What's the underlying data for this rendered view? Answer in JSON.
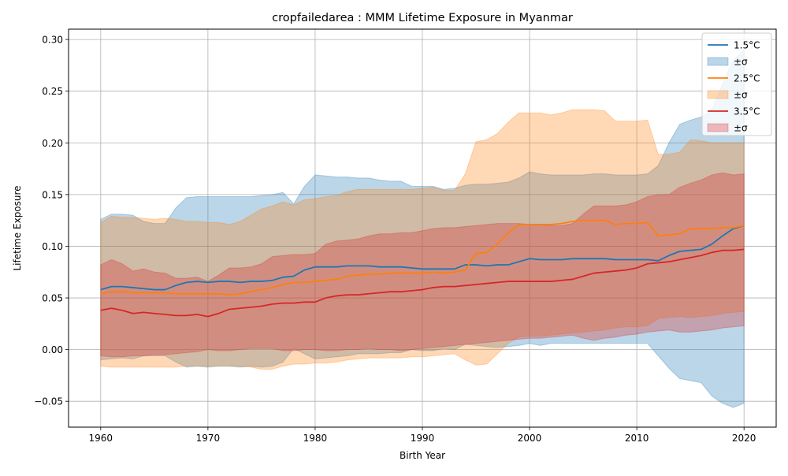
{
  "chart_data": {
    "type": "line",
    "title": "cropfailedarea : MMM Lifetime Exposure in Myanmar",
    "xlabel": "Birth Year",
    "ylabel": "Lifetime Exposure",
    "xlim": [
      1957,
      2023
    ],
    "ylim": [
      -0.075,
      0.31
    ],
    "xticks": [
      1960,
      1970,
      1980,
      1990,
      2000,
      2010,
      2020
    ],
    "yticks": [
      -0.05,
      0.0,
      0.05,
      0.1,
      0.15,
      0.2,
      0.25,
      0.3
    ],
    "ytick_labels": [
      "−0.05",
      "0.00",
      "0.05",
      "0.10",
      "0.15",
      "0.20",
      "0.25",
      "0.30"
    ],
    "grid": true,
    "legend_position": "top-right",
    "x": [
      1960,
      1961,
      1962,
      1963,
      1964,
      1965,
      1966,
      1967,
      1968,
      1969,
      1970,
      1971,
      1972,
      1973,
      1974,
      1975,
      1976,
      1977,
      1978,
      1979,
      1980,
      1981,
      1982,
      1983,
      1984,
      1985,
      1986,
      1987,
      1988,
      1989,
      1990,
      1991,
      1992,
      1993,
      1994,
      1995,
      1996,
      1997,
      1998,
      1999,
      2000,
      2001,
      2002,
      2003,
      2004,
      2005,
      2006,
      2007,
      2008,
      2009,
      2010,
      2011,
      2012,
      2013,
      2014,
      2015,
      2016,
      2017,
      2018,
      2019,
      2020
    ],
    "series": [
      {
        "name": "1.5°C",
        "band_label": "±σ",
        "color": "#1f77b4",
        "values": [
          0.058,
          0.061,
          0.061,
          0.06,
          0.059,
          0.058,
          0.058,
          0.062,
          0.065,
          0.066,
          0.065,
          0.066,
          0.066,
          0.065,
          0.066,
          0.066,
          0.067,
          0.07,
          0.071,
          0.077,
          0.08,
          0.08,
          0.08,
          0.081,
          0.081,
          0.081,
          0.08,
          0.08,
          0.08,
          0.079,
          0.078,
          0.078,
          0.078,
          0.078,
          0.082,
          0.082,
          0.081,
          0.082,
          0.082,
          0.085,
          0.088,
          0.087,
          0.087,
          0.087,
          0.088,
          0.088,
          0.088,
          0.088,
          0.087,
          0.087,
          0.087,
          0.087,
          0.086,
          0.091,
          0.095,
          0.096,
          0.097,
          0.102,
          0.11,
          0.117,
          0.12
        ],
        "upper": [
          0.126,
          0.131,
          0.131,
          0.13,
          0.124,
          0.122,
          0.122,
          0.137,
          0.147,
          0.148,
          0.148,
          0.148,
          0.148,
          0.148,
          0.148,
          0.149,
          0.15,
          0.152,
          0.141,
          0.158,
          0.169,
          0.168,
          0.167,
          0.167,
          0.166,
          0.166,
          0.164,
          0.163,
          0.163,
          0.158,
          0.158,
          0.158,
          0.155,
          0.156,
          0.159,
          0.16,
          0.16,
          0.161,
          0.162,
          0.166,
          0.172,
          0.17,
          0.169,
          0.169,
          0.169,
          0.169,
          0.17,
          0.17,
          0.169,
          0.169,
          0.169,
          0.17,
          0.178,
          0.2,
          0.218,
          0.222,
          0.225,
          0.232,
          0.257,
          0.28,
          0.29
        ],
        "lower": [
          -0.01,
          -0.009,
          -0.008,
          -0.009,
          -0.006,
          -0.006,
          -0.006,
          -0.012,
          -0.017,
          -0.016,
          -0.017,
          -0.016,
          -0.016,
          -0.017,
          -0.016,
          -0.017,
          -0.016,
          -0.012,
          0.001,
          -0.004,
          -0.009,
          -0.008,
          -0.007,
          -0.006,
          -0.004,
          -0.004,
          -0.004,
          -0.003,
          -0.003,
          0.0,
          -0.001,
          -0.001,
          0.001,
          0.0,
          0.005,
          0.004,
          0.003,
          0.002,
          0.003,
          0.004,
          0.006,
          0.004,
          0.006,
          0.006,
          0.006,
          0.006,
          0.006,
          0.006,
          0.006,
          0.006,
          0.006,
          0.006,
          -0.006,
          -0.018,
          -0.028,
          -0.03,
          -0.032,
          -0.045,
          -0.052,
          -0.056,
          -0.052
        ]
      },
      {
        "name": "2.5°C",
        "band_label": "±σ",
        "color": "#ff7f0e",
        "values": [
          0.054,
          0.056,
          0.056,
          0.055,
          0.055,
          0.055,
          0.055,
          0.054,
          0.054,
          0.054,
          0.054,
          0.054,
          0.053,
          0.054,
          0.056,
          0.058,
          0.06,
          0.063,
          0.065,
          0.065,
          0.066,
          0.067,
          0.068,
          0.071,
          0.072,
          0.073,
          0.073,
          0.074,
          0.074,
          0.074,
          0.074,
          0.075,
          0.074,
          0.075,
          0.077,
          0.093,
          0.094,
          0.102,
          0.113,
          0.121,
          0.121,
          0.121,
          0.121,
          0.122,
          0.124,
          0.125,
          0.125,
          0.125,
          0.121,
          0.122,
          0.122,
          0.123,
          0.11,
          0.111,
          0.112,
          0.117,
          0.117,
          0.117,
          0.118,
          0.118,
          0.12
        ],
        "upper": [
          0.123,
          0.129,
          0.128,
          0.128,
          0.127,
          0.126,
          0.127,
          0.126,
          0.124,
          0.124,
          0.123,
          0.123,
          0.121,
          0.124,
          0.13,
          0.136,
          0.139,
          0.143,
          0.14,
          0.145,
          0.146,
          0.148,
          0.149,
          0.153,
          0.155,
          0.155,
          0.155,
          0.155,
          0.155,
          0.155,
          0.156,
          0.157,
          0.154,
          0.154,
          0.17,
          0.201,
          0.203,
          0.209,
          0.22,
          0.229,
          0.229,
          0.229,
          0.227,
          0.229,
          0.232,
          0.232,
          0.232,
          0.231,
          0.221,
          0.221,
          0.221,
          0.222,
          0.189,
          0.189,
          0.191,
          0.203,
          0.202,
          0.2,
          0.2,
          0.2,
          0.2
        ],
        "lower": [
          -0.016,
          -0.017,
          -0.017,
          -0.017,
          -0.017,
          -0.017,
          -0.017,
          -0.017,
          -0.016,
          -0.016,
          -0.016,
          -0.016,
          -0.016,
          -0.016,
          -0.017,
          -0.019,
          -0.019,
          -0.016,
          -0.014,
          -0.014,
          -0.013,
          -0.013,
          -0.012,
          -0.01,
          -0.009,
          -0.008,
          -0.008,
          -0.008,
          -0.008,
          -0.007,
          -0.007,
          -0.006,
          -0.005,
          -0.004,
          -0.01,
          -0.015,
          -0.014,
          -0.004,
          0.006,
          0.012,
          0.013,
          0.013,
          0.014,
          0.015,
          0.016,
          0.017,
          0.018,
          0.019,
          0.021,
          0.022,
          0.022,
          0.023,
          0.03,
          0.031,
          0.032,
          0.031,
          0.032,
          0.033,
          0.035,
          0.036,
          0.037
        ]
      },
      {
        "name": "3.5°C",
        "band_label": "±σ",
        "color": "#d62728",
        "values": [
          0.038,
          0.04,
          0.038,
          0.035,
          0.036,
          0.035,
          0.034,
          0.033,
          0.033,
          0.034,
          0.032,
          0.035,
          0.039,
          0.04,
          0.041,
          0.042,
          0.044,
          0.045,
          0.045,
          0.046,
          0.046,
          0.05,
          0.052,
          0.053,
          0.053,
          0.054,
          0.055,
          0.056,
          0.056,
          0.057,
          0.058,
          0.06,
          0.061,
          0.061,
          0.062,
          0.063,
          0.064,
          0.065,
          0.066,
          0.066,
          0.066,
          0.066,
          0.066,
          0.067,
          0.068,
          0.071,
          0.074,
          0.075,
          0.076,
          0.077,
          0.079,
          0.083,
          0.084,
          0.085,
          0.087,
          0.089,
          0.091,
          0.094,
          0.096,
          0.096,
          0.097
        ],
        "upper": [
          0.082,
          0.087,
          0.083,
          0.076,
          0.078,
          0.075,
          0.074,
          0.069,
          0.069,
          0.07,
          0.066,
          0.072,
          0.079,
          0.079,
          0.08,
          0.083,
          0.09,
          0.091,
          0.092,
          0.092,
          0.093,
          0.102,
          0.105,
          0.106,
          0.107,
          0.11,
          0.112,
          0.112,
          0.113,
          0.113,
          0.115,
          0.117,
          0.118,
          0.118,
          0.119,
          0.12,
          0.121,
          0.122,
          0.122,
          0.122,
          0.121,
          0.121,
          0.12,
          0.12,
          0.122,
          0.131,
          0.139,
          0.139,
          0.139,
          0.14,
          0.143,
          0.148,
          0.15,
          0.15,
          0.157,
          0.161,
          0.164,
          0.169,
          0.171,
          0.169,
          0.17
        ],
        "lower": [
          -0.006,
          -0.007,
          -0.007,
          -0.006,
          -0.006,
          -0.005,
          -0.005,
          -0.004,
          -0.003,
          -0.002,
          0.0,
          -0.001,
          -0.001,
          0.0,
          0.001,
          0.001,
          0.001,
          -0.001,
          -0.001,
          0.0,
          0.0,
          -0.001,
          -0.001,
          0.0,
          0.0,
          0.001,
          0.0,
          0.0,
          -0.001,
          0.0,
          0.001,
          0.002,
          0.003,
          0.004,
          0.005,
          0.006,
          0.007,
          0.008,
          0.009,
          0.01,
          0.011,
          0.011,
          0.012,
          0.013,
          0.014,
          0.011,
          0.009,
          0.011,
          0.012,
          0.014,
          0.015,
          0.017,
          0.018,
          0.019,
          0.017,
          0.017,
          0.018,
          0.019,
          0.021,
          0.022,
          0.023
        ]
      }
    ]
  }
}
